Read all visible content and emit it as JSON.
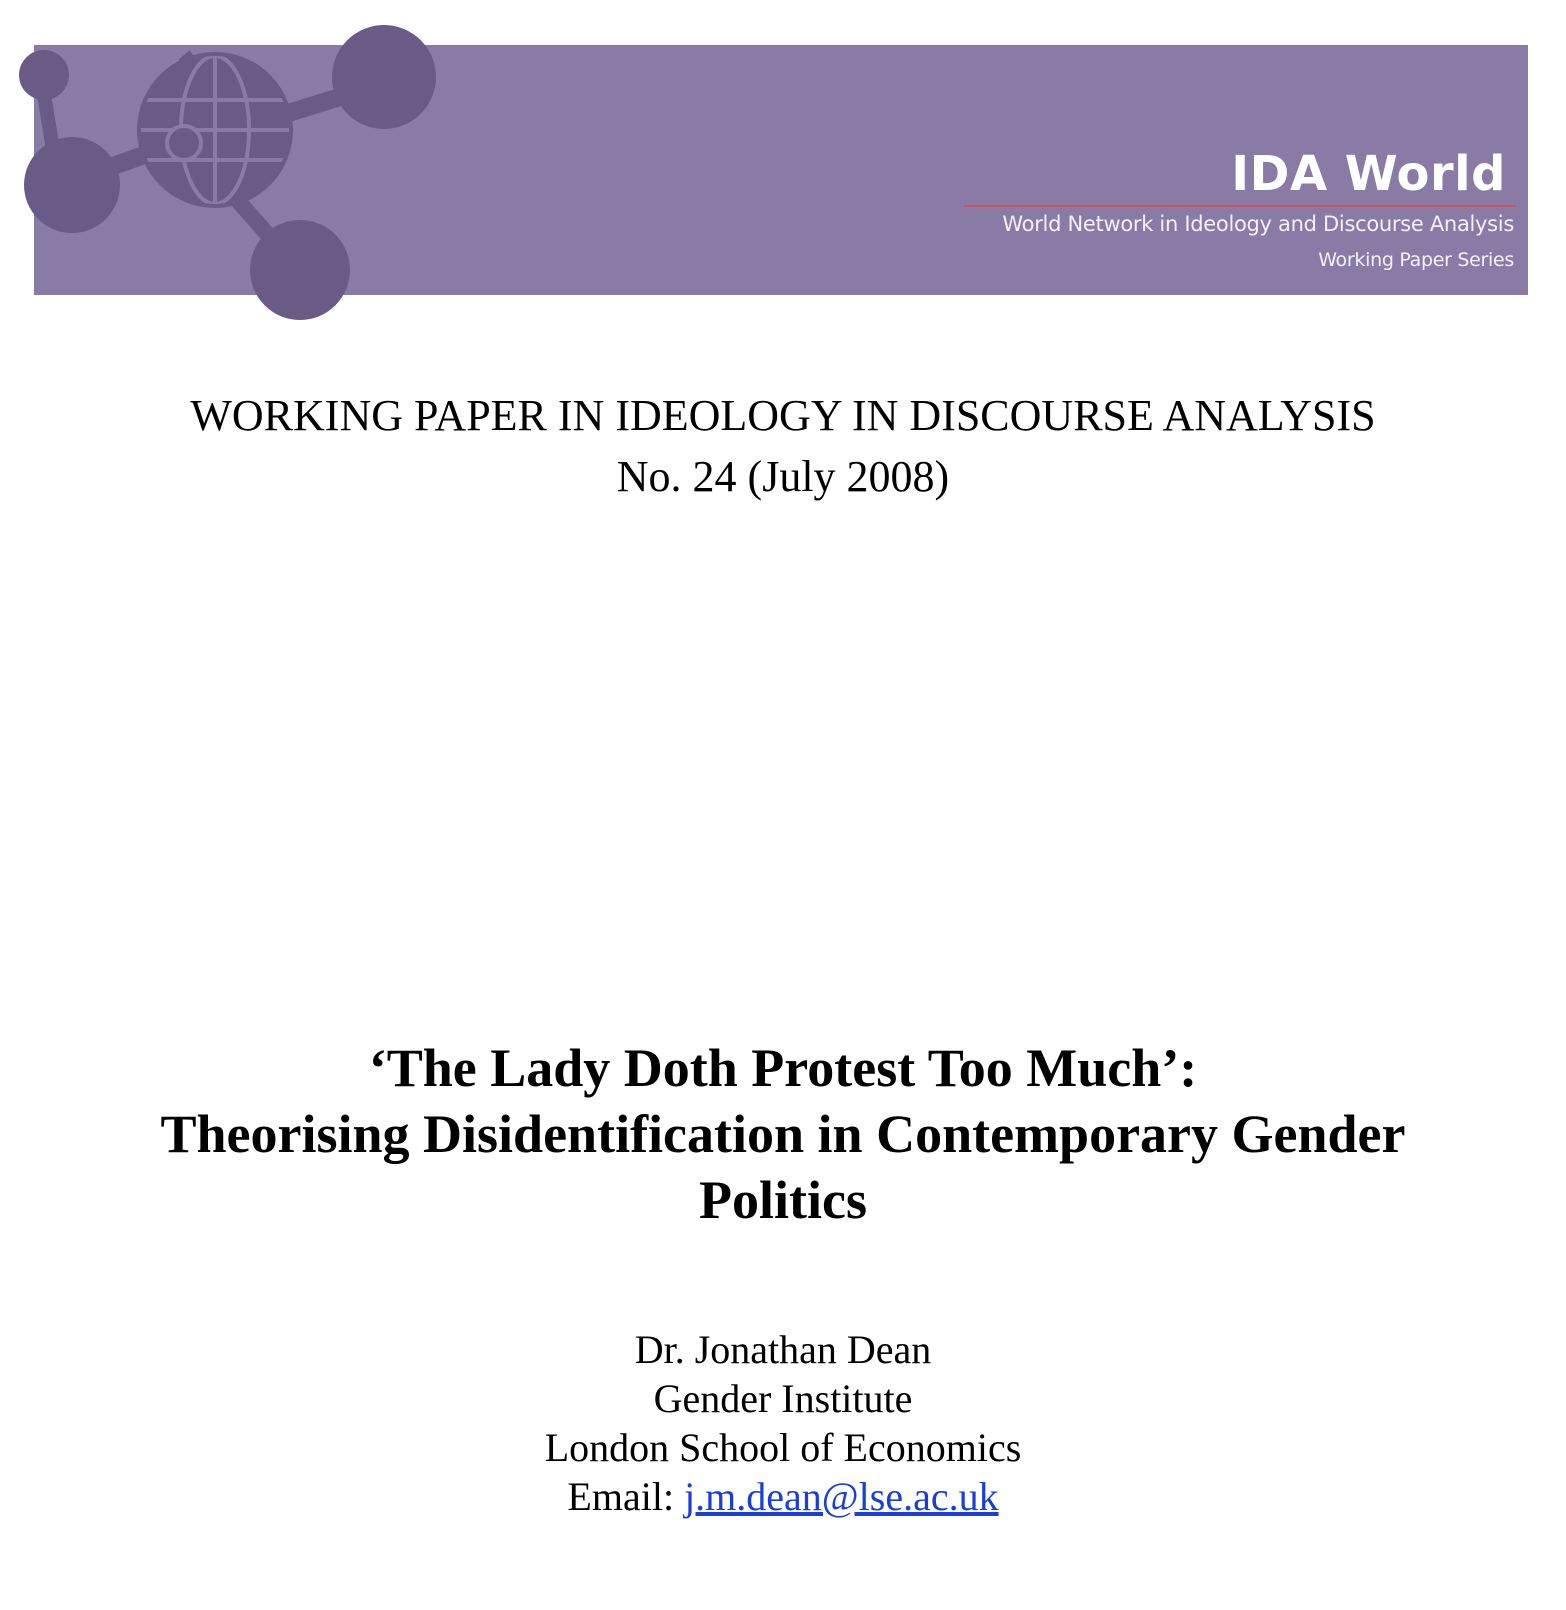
{
  "header": {
    "brand_title": "IDA World",
    "brand_subtitle": "World Network in Ideology and Discourse Analysis",
    "brand_series": "Working Paper Series",
    "banner_color": "#8a7ba6",
    "logo_icon": "globe-network-icon"
  },
  "series": {
    "line1": "WORKING PAPER IN IDEOLOGY IN DISCOURSE ANALYSIS",
    "line2": "No. 24 (July 2008)"
  },
  "paper": {
    "title_lines": [
      "‘The Lady Doth Protest Too Much’:",
      "Theorising Disidentification in Contemporary Gender",
      "Politics"
    ]
  },
  "author": {
    "name": "Dr. Jonathan Dean",
    "department": "Gender Institute",
    "institution": "London School of Economics",
    "email_label": "Email:",
    "email": "j.m.dean@lse.ac.uk",
    "link_color": "#1a3fd8"
  }
}
